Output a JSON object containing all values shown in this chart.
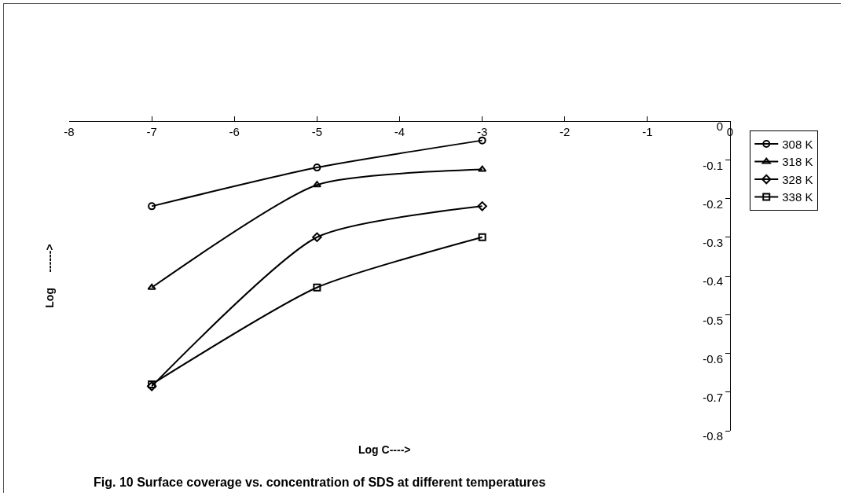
{
  "chart_data": {
    "type": "line",
    "title": "Fig. 10 Surface coverage vs. concentration of SDS at different temperatures",
    "xlabel": "Log C---->",
    "ylabel": "Log     ------>",
    "x": [
      -7,
      -5,
      -3
    ],
    "series": [
      {
        "name": "308 K",
        "color": "#000000",
        "marker": "circle",
        "values": [
          -0.22,
          -0.12,
          -0.05
        ]
      },
      {
        "name": "318 K",
        "color": "#000000",
        "marker": "triangle",
        "values": [
          -0.43,
          -0.165,
          -0.125
        ]
      },
      {
        "name": "328 K",
        "color": "#000000",
        "marker": "diamond",
        "values": [
          -0.685,
          -0.3,
          -0.22
        ]
      },
      {
        "name": "338 K",
        "color": "#000000",
        "marker": "square",
        "values": [
          -0.68,
          -0.43,
          -0.3
        ]
      }
    ],
    "xlim": [
      -8,
      0
    ],
    "xticks": [
      -8,
      -7,
      -6,
      -5,
      -4,
      -3,
      -2,
      -1,
      0
    ],
    "ylim": [
      -0.8,
      0
    ],
    "yticks": [
      -0.8,
      -0.7,
      -0.6,
      -0.5,
      -0.4,
      -0.3,
      -0.2,
      -0.1,
      0
    ],
    "grid": false,
    "legend": "right",
    "line_style": "solid"
  }
}
